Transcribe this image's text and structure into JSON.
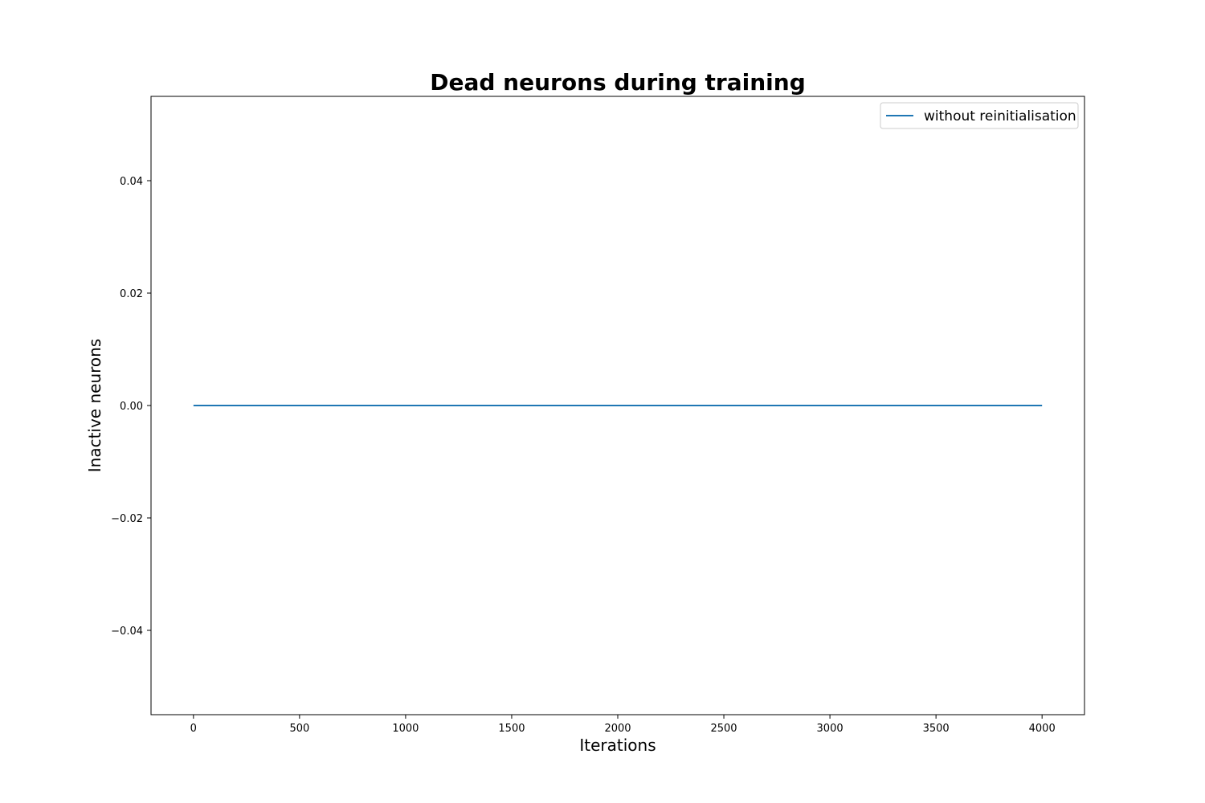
{
  "chart_data": {
    "type": "line",
    "title": "Dead neurons during training",
    "xlabel": "Iterations",
    "ylabel": "Inactive neurons",
    "xlim": [
      -200,
      4200
    ],
    "ylim": [
      -0.055,
      0.055
    ],
    "x_ticks": [
      0,
      500,
      1000,
      1500,
      2000,
      2500,
      3000,
      3500,
      4000
    ],
    "x_tick_labels": [
      "0",
      "500",
      "1000",
      "1500",
      "2000",
      "2500",
      "3000",
      "3500",
      "4000"
    ],
    "y_ticks": [
      -0.04,
      -0.02,
      0.0,
      0.02,
      0.04
    ],
    "y_tick_labels": [
      "−0.04",
      "−0.02",
      "0.00",
      "0.02",
      "0.04"
    ],
    "grid": false,
    "legend_position": "top-right",
    "series": [
      {
        "name": "without reinitialisation",
        "color": "#1f77b4",
        "x": [
          0,
          4000
        ],
        "y": [
          0,
          0
        ]
      }
    ]
  }
}
